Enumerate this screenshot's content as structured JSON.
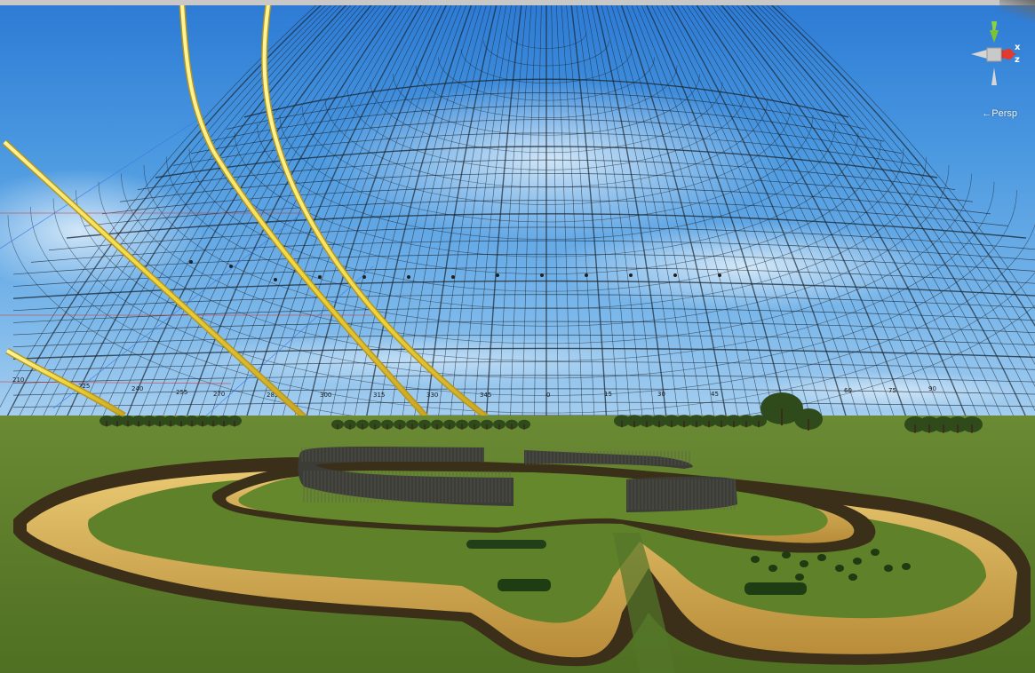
{
  "view": {
    "projection_label": "←Persp",
    "gizmo_axes": {
      "y": "y",
      "x": "x",
      "z": "z"
    }
  },
  "colors": {
    "sky_top": "#2a78d2",
    "sky_mid": "#5aa3e6",
    "sky_low": "#a4cdf1",
    "grid_line": "#1b2630",
    "sun_path": "#f2e14a",
    "grass": "#5e7f2c",
    "ditch": "#d8b25a",
    "palisade": "#3b3b36",
    "axis_x": "#d9322a",
    "axis_y": "#8dd13f",
    "axis_z": "#3a7ae0"
  },
  "azimuth_labels": [
    "210",
    "225",
    "240",
    "255",
    "270",
    "285",
    "300",
    "315",
    "330",
    "345",
    "0",
    "15",
    "30",
    "45",
    "60",
    "75",
    "90"
  ],
  "scene_objects": {
    "sun_paths": 4,
    "palisade_segments": 3,
    "ditch_rings": 2
  }
}
